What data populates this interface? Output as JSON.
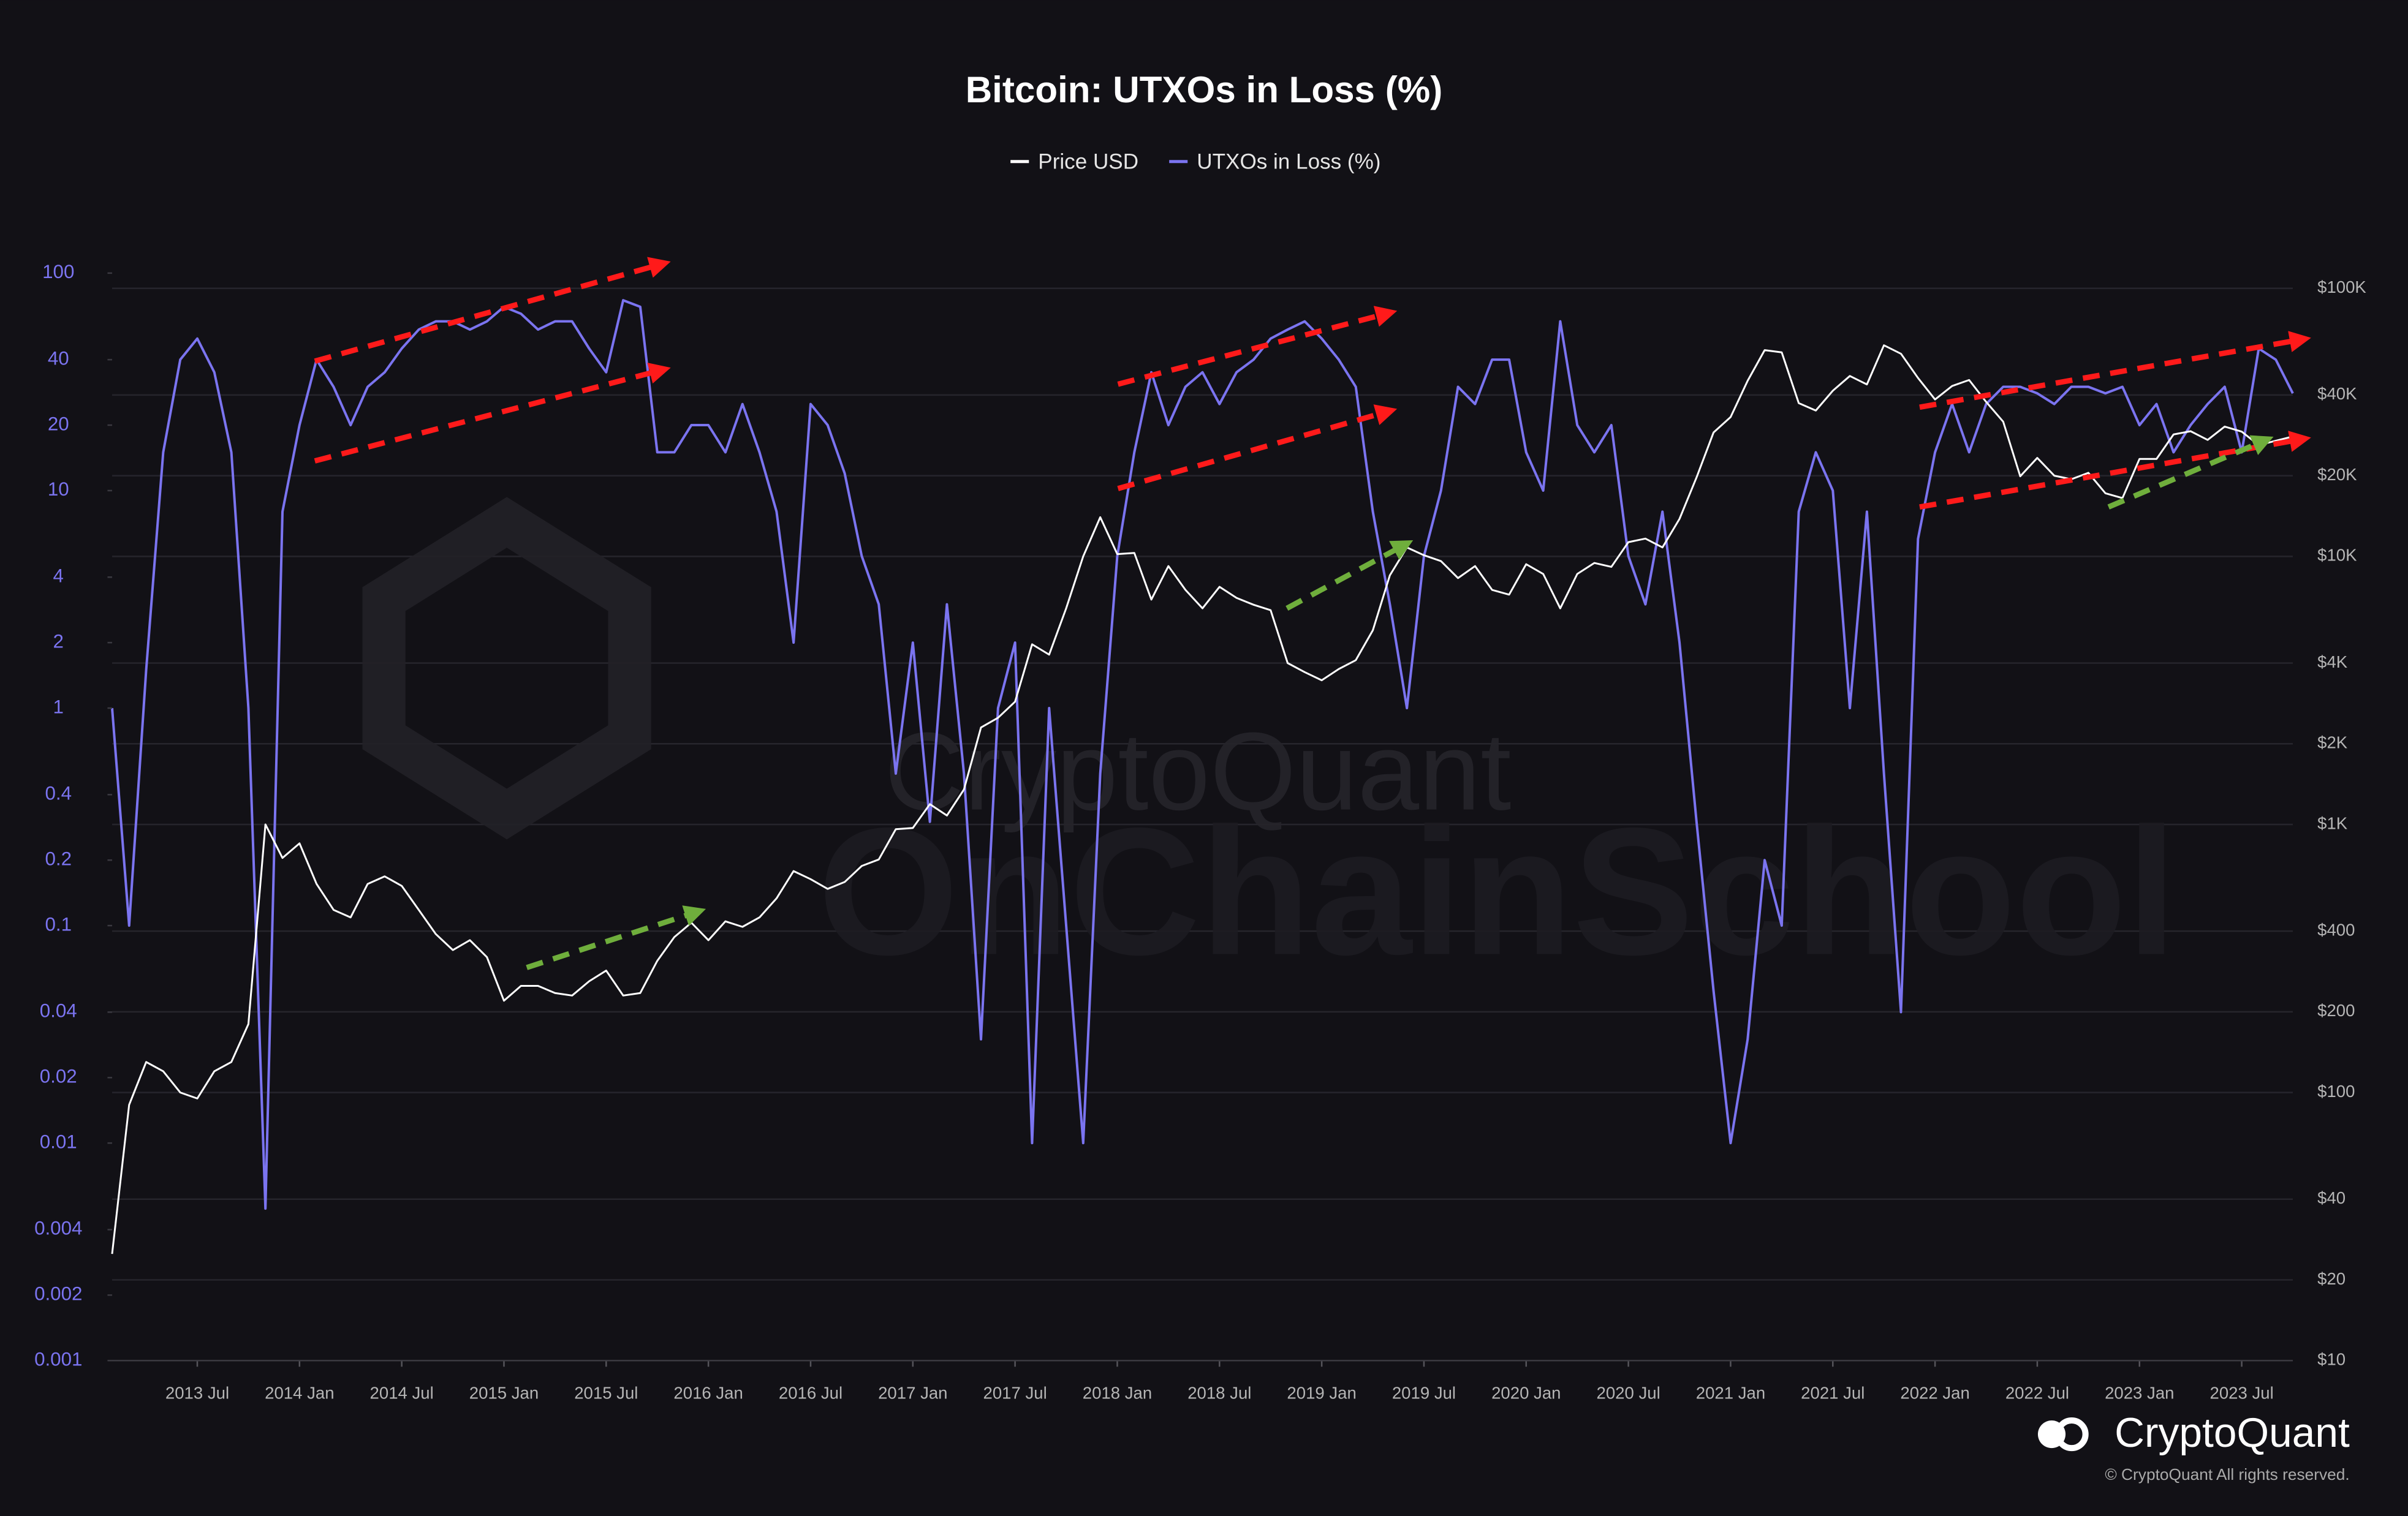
{
  "chart_data": {
    "type": "line",
    "title": "Bitcoin: UTXOs in Loss (%)",
    "x": [
      "2013-02",
      "2013-03",
      "2013-04",
      "2013-05",
      "2013-06",
      "2013-07",
      "2013-08",
      "2013-09",
      "2013-10",
      "2013-11",
      "2013-12",
      "2014-01",
      "2014-02",
      "2014-03",
      "2014-04",
      "2014-05",
      "2014-06",
      "2014-07",
      "2014-08",
      "2014-09",
      "2014-10",
      "2014-11",
      "2014-12",
      "2015-01",
      "2015-02",
      "2015-03",
      "2015-04",
      "2015-05",
      "2015-06",
      "2015-07",
      "2015-08",
      "2015-09",
      "2015-10",
      "2015-11",
      "2015-12",
      "2016-01",
      "2016-02",
      "2016-03",
      "2016-04",
      "2016-05",
      "2016-06",
      "2016-07",
      "2016-08",
      "2016-09",
      "2016-10",
      "2016-11",
      "2016-12",
      "2017-01",
      "2017-02",
      "2017-03",
      "2017-04",
      "2017-05",
      "2017-06",
      "2017-07",
      "2017-08",
      "2017-09",
      "2017-10",
      "2017-11",
      "2017-12",
      "2018-01",
      "2018-02",
      "2018-03",
      "2018-04",
      "2018-05",
      "2018-06",
      "2018-07",
      "2018-08",
      "2018-09",
      "2018-10",
      "2018-11",
      "2018-12",
      "2019-01",
      "2019-02",
      "2019-03",
      "2019-04",
      "2019-05",
      "2019-06",
      "2019-07",
      "2019-08",
      "2019-09",
      "2019-10",
      "2019-11",
      "2019-12",
      "2020-01",
      "2020-02",
      "2020-03",
      "2020-04",
      "2020-05",
      "2020-06",
      "2020-07",
      "2020-08",
      "2020-09",
      "2020-10",
      "2020-11",
      "2020-12",
      "2021-01",
      "2021-02",
      "2021-03",
      "2021-04",
      "2021-05",
      "2021-06",
      "2021-07",
      "2021-08",
      "2021-09",
      "2021-10",
      "2021-11",
      "2021-12",
      "2022-01",
      "2022-02",
      "2022-03",
      "2022-04",
      "2022-05",
      "2022-06",
      "2022-07",
      "2022-08",
      "2022-09",
      "2022-10",
      "2022-11",
      "2022-12",
      "2023-01",
      "2023-02",
      "2023-03",
      "2023-04",
      "2023-05",
      "2023-06",
      "2023-07",
      "2023-08",
      "2023-09",
      "2023-10"
    ],
    "series": [
      {
        "name": "Price USD",
        "color": "#ffffff",
        "axis": "y2",
        "values": [
          25,
          90,
          130,
          120,
          100,
          95,
          120,
          130,
          180,
          1000,
          750,
          850,
          600,
          480,
          450,
          600,
          640,
          590,
          480,
          390,
          340,
          370,
          320,
          220,
          250,
          250,
          235,
          230,
          260,
          285,
          230,
          235,
          310,
          380,
          430,
          370,
          435,
          415,
          450,
          530,
          670,
          625,
          575,
          610,
          700,
          740,
          960,
          970,
          1190,
          1080,
          1350,
          2300,
          2500,
          2870,
          4700,
          4300,
          6400,
          10000,
          14000,
          10200,
          10300,
          6900,
          9200,
          7500,
          6400,
          7700,
          7000,
          6600,
          6300,
          4000,
          3700,
          3450,
          3800,
          4100,
          5300,
          8500,
          10800,
          10100,
          9600,
          8300,
          9200,
          7500,
          7200,
          9350,
          8600,
          6400,
          8600,
          9450,
          9140,
          11300,
          11650,
          10800,
          13800,
          19700,
          29000,
          33100,
          45200,
          58800,
          57700,
          37300,
          35000,
          41500,
          47100,
          43800,
          61300,
          57000,
          46300,
          38500,
          43200,
          45500,
          37700,
          31800,
          19900,
          23300,
          20000,
          19400,
          20500,
          17200,
          16500,
          23100,
          23100,
          28500,
          29300,
          27200,
          30500,
          29200,
          26000,
          27000,
          28000
        ]
      },
      {
        "name": "UTXOs in Loss (%)",
        "color": "#7b74f0",
        "axis": "y",
        "values": [
          1,
          0.1,
          1.5,
          15,
          40,
          50,
          35,
          15,
          1,
          0.005,
          8,
          20,
          40,
          30,
          20,
          30,
          35,
          45,
          55,
          60,
          60,
          55,
          60,
          70,
          65,
          55,
          60,
          60,
          45,
          35,
          75,
          70,
          15,
          15,
          20,
          20,
          15,
          25,
          15,
          8,
          2,
          25,
          20,
          12,
          5,
          3,
          0.5,
          2,
          0.3,
          3,
          0.5,
          0.03,
          1,
          2,
          0.01,
          1,
          0.1,
          0.01,
          0.5,
          5,
          15,
          35,
          20,
          30,
          35,
          25,
          35,
          40,
          50,
          55,
          60,
          50,
          40,
          30,
          8,
          3,
          1,
          5,
          10,
          30,
          25,
          40,
          40,
          15,
          10,
          60,
          20,
          15,
          20,
          5,
          3,
          8,
          2,
          0.3,
          0.05,
          0.01,
          0.03,
          0.2,
          0.1,
          8,
          15,
          10,
          1,
          8,
          0.5,
          0.04,
          6,
          15,
          25,
          15,
          25,
          30,
          30,
          28,
          25,
          30,
          30,
          28,
          30,
          20,
          25,
          15,
          20,
          25,
          30,
          15,
          45,
          40,
          28
        ]
      }
    ],
    "xlim": [
      "2013-02",
      "2023-10"
    ],
    "xticks": [
      {
        "value": "2013-07",
        "label": "2013 Jul"
      },
      {
        "value": "2014-01",
        "label": "2014 Jan"
      },
      {
        "value": "2014-07",
        "label": "2014 Jul"
      },
      {
        "value": "2015-01",
        "label": "2015 Jan"
      },
      {
        "value": "2015-07",
        "label": "2015 Jul"
      },
      {
        "value": "2016-01",
        "label": "2016 Jan"
      },
      {
        "value": "2016-07",
        "label": "2016 Jul"
      },
      {
        "value": "2017-01",
        "label": "2017 Jan"
      },
      {
        "value": "2017-07",
        "label": "2017 Jul"
      },
      {
        "value": "2018-01",
        "label": "2018 Jan"
      },
      {
        "value": "2018-07",
        "label": "2018 Jul"
      },
      {
        "value": "2019-01",
        "label": "2019 Jan"
      },
      {
        "value": "2019-07",
        "label": "2019 Jul"
      },
      {
        "value": "2020-01",
        "label": "2020 Jan"
      },
      {
        "value": "2020-07",
        "label": "2020 Jul"
      },
      {
        "value": "2021-01",
        "label": "2021 Jan"
      },
      {
        "value": "2021-07",
        "label": "2021 Jul"
      },
      {
        "value": "2022-01",
        "label": "2022 Jan"
      },
      {
        "value": "2022-07",
        "label": "2022 Jul"
      },
      {
        "value": "2023-01",
        "label": "2023 Jan"
      },
      {
        "value": "2023-07",
        "label": "2023 Jul"
      }
    ],
    "ylim": [
      0.001,
      200
    ],
    "yticks": [
      0.001,
      0.002,
      0.004,
      0.01,
      0.02,
      0.04,
      0.1,
      0.2,
      0.4,
      1,
      2,
      4,
      10,
      20,
      40,
      100
    ],
    "y2lim": [
      10,
      200000
    ],
    "y2ticks": [
      {
        "value": 10,
        "label": "$10"
      },
      {
        "value": 20,
        "label": "$20"
      },
      {
        "value": 40,
        "label": "$40"
      },
      {
        "value": 100,
        "label": "$100"
      },
      {
        "value": 200,
        "label": "$200"
      },
      {
        "value": 400,
        "label": "$400"
      },
      {
        "value": 1000,
        "label": "$1K"
      },
      {
        "value": 2000,
        "label": "$2K"
      },
      {
        "value": 4000,
        "label": "$4K"
      },
      {
        "value": 10000,
        "label": "$10K"
      },
      {
        "value": 20000,
        "label": "$20K"
      },
      {
        "value": 40000,
        "label": "$40K"
      },
      {
        "value": 100000,
        "label": "$100K"
      }
    ],
    "log_scale": true,
    "grid": true,
    "legend_position": "top",
    "watermark": [
      "CryptoQuant",
      "OnChainSchool"
    ],
    "brand": "CryptoQuant",
    "copyright": "© CryptoQuant All rights reserved."
  }
}
